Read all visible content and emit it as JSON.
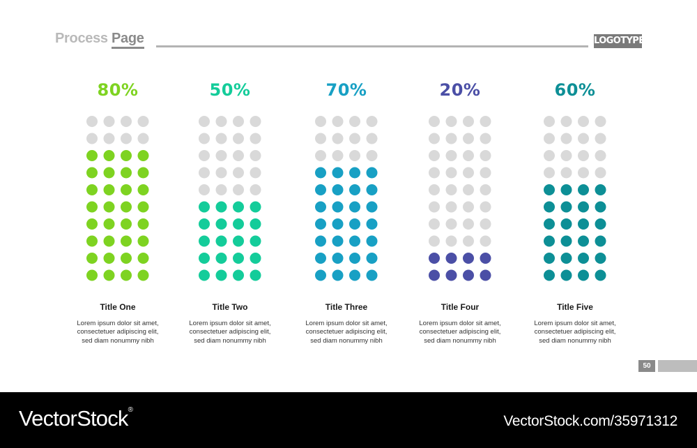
{
  "header": {
    "title_word1": "Process",
    "title_word2": "Page",
    "logo": "LOGOTYPE"
  },
  "colors": {
    "inactive_dot": "#d9d9d9",
    "text_dark": "#1a1a1a",
    "header_gray": "#8a8a8a"
  },
  "grid": {
    "rows": 10,
    "cols": 4
  },
  "chart_data": {
    "type": "dot-matrix",
    "categories": [
      "Title One",
      "Title Two",
      "Title Three",
      "Title Four",
      "Title Five"
    ],
    "values": [
      80,
      50,
      70,
      20,
      60
    ],
    "labels": [
      "80%",
      "50%",
      "70%",
      "20%",
      "60%"
    ],
    "colors": [
      "#7ed321",
      "#14cc9a",
      "#18a0c4",
      "#4b4fa6",
      "#0d8f96"
    ],
    "descriptions": [
      [
        "Lorem ipsum dolor sit amet,",
        "consectetuer adipiscing elit,",
        "sed diam nonummy nibh"
      ],
      [
        "Lorem ipsum dolor sit amet,",
        "consectetuer adipiscing elit,",
        "sed diam nonummy nibh"
      ],
      [
        "Lorem ipsum dolor sit amet,",
        "consectetuer adipiscing elit,",
        "sed diam nonummy nibh"
      ],
      [
        "Lorem ipsum dolor sit amet,",
        "consectetuer adipiscing elit,",
        "sed diam nonummy nibh"
      ],
      [
        "Lorem ipsum dolor sit amet,",
        "consectetuer adipiscing elit,",
        "sed diam nonummy nibh"
      ]
    ]
  },
  "page_number": "50",
  "footer": {
    "brand": "VectorStock",
    "brand_reg": "®",
    "stock_id": "VectorStock.com/35971312"
  }
}
